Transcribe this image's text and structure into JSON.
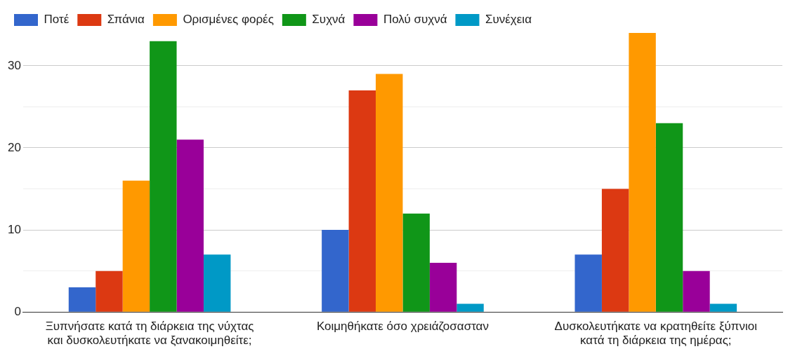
{
  "chart_data": {
    "type": "bar",
    "categories": [
      "Ξυπνήσατε κατά τη διάρκεια της νύχτας και δυσκολευτήκατε να ξανακοιμηθείτε;",
      "Κοιμηθήκατε όσο χρειάζοσασταν",
      "Δυσκολευτήκατε να κρατηθείτε ξύπνιοι κατά τη διάρκεια της ημέρας;"
    ],
    "series": [
      {
        "name": "Ποτέ",
        "color": "#3366cc",
        "values": [
          3,
          10,
          7
        ]
      },
      {
        "name": "Σπάνια",
        "color": "#dc3912",
        "values": [
          5,
          27,
          15
        ]
      },
      {
        "name": "Ορισμένες φορές",
        "color": "#ff9900",
        "values": [
          16,
          29,
          34
        ]
      },
      {
        "name": "Συχνά",
        "color": "#109618",
        "values": [
          33,
          12,
          23
        ]
      },
      {
        "name": "Πολύ συχνά",
        "color": "#990099",
        "values": [
          21,
          6,
          5
        ]
      },
      {
        "name": "Συνέχεια",
        "color": "#0099c6",
        "values": [
          7,
          1,
          1
        ]
      }
    ],
    "ylim": [
      0,
      34
    ],
    "yticks": [
      0,
      {
        "value": 5,
        "label": null
      },
      10,
      {
        "value": 15,
        "label": null
      },
      20,
      {
        "value": 25,
        "label": null
      },
      30
    ],
    "grid": "y",
    "legend": "top left"
  }
}
